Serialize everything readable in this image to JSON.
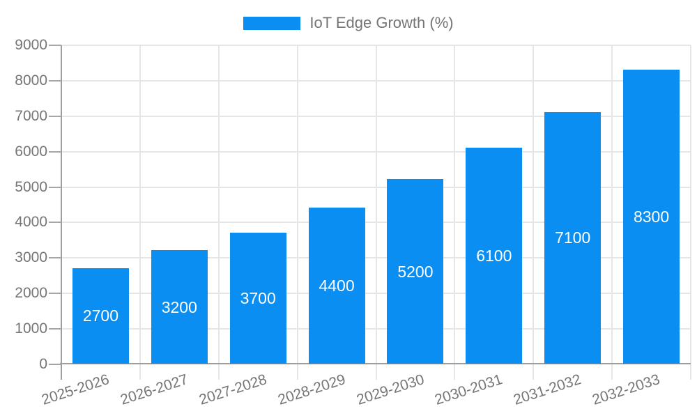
{
  "chart_data": {
    "type": "bar",
    "title": "",
    "legend": {
      "label": "IoT Edge Growth (%)",
      "position": "top-center"
    },
    "categories": [
      "2025-2026",
      "2026-2027",
      "2027-2028",
      "2028-2029",
      "2029-2030",
      "2030-2031",
      "2031-2032",
      "2032-2033"
    ],
    "series": [
      {
        "name": "IoT Edge Growth (%)",
        "values": [
          2700,
          3200,
          3700,
          4400,
          5200,
          6100,
          7100,
          8300
        ]
      }
    ],
    "value_labels": [
      "2700",
      "3200",
      "3700",
      "4400",
      "5200",
      "6100",
      "7100",
      "8300"
    ],
    "value_label_position": "inside-center",
    "xlabel": "",
    "ylabel": "",
    "ylim": [
      0,
      9000
    ],
    "yticks": [
      0,
      1000,
      2000,
      3000,
      4000,
      5000,
      6000,
      7000,
      8000,
      9000
    ],
    "grid": true,
    "x_label_rotation_deg": -18,
    "colors": {
      "bar": "#0a8ef2",
      "value_label": "#ffffff",
      "axis_label": "#757575",
      "legend_text": "#757575",
      "gridline": "#e6e6e6",
      "axis_line": "#9e9e9e",
      "y_tick": "#a6a6a6",
      "x_tick": "#cfcfcf",
      "background": "#ffffff"
    }
  }
}
